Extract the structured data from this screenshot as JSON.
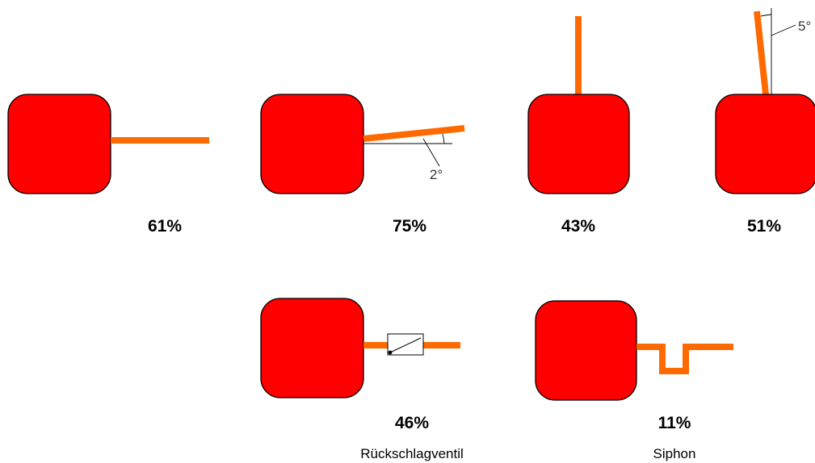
{
  "colors": {
    "box": "#ff0000",
    "pipe": "#ff6a00",
    "outline": "#000000"
  },
  "setups": [
    {
      "id": "horizontal",
      "percent": "61%"
    },
    {
      "id": "rising-2deg",
      "percent": "75%",
      "angle_label": "2°"
    },
    {
      "id": "vertical",
      "percent": "43%"
    },
    {
      "id": "tilted-5deg",
      "percent": "51%",
      "angle_label": "5°"
    },
    {
      "id": "check-valve",
      "percent": "46%",
      "caption": "Rückschlagventil"
    },
    {
      "id": "siphon",
      "percent": "11%",
      "caption": "Siphon"
    }
  ]
}
